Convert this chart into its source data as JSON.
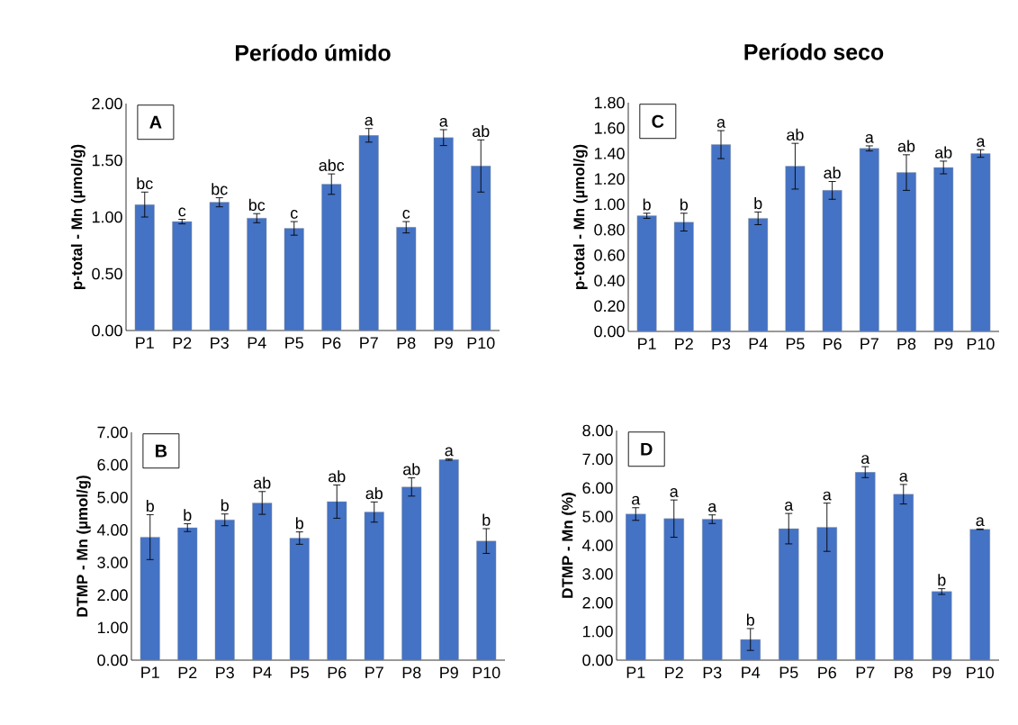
{
  "chart_data": [
    {
      "type": "bar",
      "title": "Período úmido",
      "ylabel": "p-total - Mn (µmol/g)",
      "color": "#4472c4",
      "categories": [
        "P1",
        "P2",
        "P3",
        "P4",
        "P5",
        "P6",
        "P7",
        "P8",
        "P9",
        "P10"
      ],
      "values": [
        1.11,
        0.96,
        1.13,
        0.99,
        0.9,
        1.29,
        1.72,
        0.91,
        1.7,
        1.45
      ],
      "errors": [
        0.11,
        0.02,
        0.04,
        0.04,
        0.06,
        0.09,
        0.06,
        0.05,
        0.07,
        0.23
      ],
      "ylim": [
        0,
        2
      ],
      "yticks": [
        {
          "value": 0,
          "label": "0.00"
        },
        {
          "value": 0.5,
          "label": "0.50"
        },
        {
          "value": 1,
          "label": "1.00"
        },
        {
          "value": 1.5,
          "label": "1.50"
        },
        {
          "value": 2,
          "label": "2.00"
        }
      ],
      "annotations": [
        "A",
        {
          "text": "bc",
          "x": "P1",
          "y": 1.22
        },
        {
          "text": "c",
          "x": "P2",
          "y": 0.98
        },
        {
          "text": "bc",
          "x": "P3",
          "y": 1.17
        },
        {
          "text": "bc",
          "x": "P4",
          "y": 1.03
        },
        {
          "text": "c",
          "x": "P5",
          "y": 0.96
        },
        {
          "text": "abc",
          "x": "P6",
          "y": 1.38
        },
        {
          "text": "a",
          "x": "P7",
          "y": 1.78
        },
        {
          "text": "c",
          "x": "P8",
          "y": 0.96
        },
        {
          "text": "a",
          "x": "P9",
          "y": 1.77
        },
        {
          "text": "ab",
          "x": "P10",
          "y": 1.68
        }
      ]
    },
    {
      "type": "bar",
      "ylabel": "DTMP - Mn (µmol/g)",
      "color": "#4472c4",
      "categories": [
        "P1",
        "P2",
        "P3",
        "P4",
        "P5",
        "P6",
        "P7",
        "P8",
        "P9",
        "P10"
      ],
      "values": [
        3.78,
        4.07,
        4.31,
        4.83,
        3.75,
        4.87,
        4.55,
        5.32,
        6.16,
        3.66
      ],
      "errors": [
        0.69,
        0.12,
        0.18,
        0.35,
        0.19,
        0.51,
        0.31,
        0.28,
        0.02,
        0.38
      ],
      "ylim": [
        0,
        7
      ],
      "yticks": [
        {
          "value": 0,
          "label": "0.00"
        },
        {
          "value": 1,
          "label": "1.00"
        },
        {
          "value": 2,
          "label": "2.00"
        },
        {
          "value": 3,
          "label": "3.00"
        },
        {
          "value": 4,
          "label": "4.00"
        },
        {
          "value": 5,
          "label": "5.00"
        },
        {
          "value": 6,
          "label": "6.00"
        },
        {
          "value": 7,
          "label": "7.00"
        }
      ],
      "annotations": [
        "B",
        {
          "text": "b",
          "x": "P1",
          "y": 4.47
        },
        {
          "text": "b",
          "x": "P2",
          "y": 4.19
        },
        {
          "text": "b",
          "x": "P3",
          "y": 4.49
        },
        {
          "text": "ab",
          "x": "P4",
          "y": 5.18
        },
        {
          "text": "b",
          "x": "P5",
          "y": 3.94
        },
        {
          "text": "ab",
          "x": "P6",
          "y": 5.38
        },
        {
          "text": "ab",
          "x": "P7",
          "y": 4.86
        },
        {
          "text": "ab",
          "x": "P8",
          "y": 5.6
        },
        {
          "text": "a",
          "x": "P9",
          "y": 6.18
        },
        {
          "text": "b",
          "x": "P10",
          "y": 4.04
        }
      ]
    },
    {
      "type": "bar",
      "title": "Período seco",
      "ylabel": "p-total - Mn (µmol/g)",
      "color": "#4472c4",
      "categories": [
        "P1",
        "P2",
        "P3",
        "P4",
        "P5",
        "P6",
        "P7",
        "P8",
        "P9",
        "P10"
      ],
      "values": [
        0.91,
        0.86,
        1.47,
        0.89,
        1.3,
        1.11,
        1.44,
        1.25,
        1.29,
        1.4
      ],
      "errors": [
        0.02,
        0.07,
        0.11,
        0.05,
        0.18,
        0.07,
        0.02,
        0.14,
        0.05,
        0.03
      ],
      "ylim": [
        0,
        1.8
      ],
      "yticks": [
        {
          "value": 0,
          "label": "0.00"
        },
        {
          "value": 0.2,
          "label": "0.20"
        },
        {
          "value": 0.4,
          "label": "0.40"
        },
        {
          "value": 0.6,
          "label": "0.60"
        },
        {
          "value": 0.8,
          "label": "0.80"
        },
        {
          "value": 1,
          "label": "1.00"
        },
        {
          "value": 1.2,
          "label": "1.20"
        },
        {
          "value": 1.4,
          "label": "1.40"
        },
        {
          "value": 1.6,
          "label": "1.60"
        },
        {
          "value": 1.8,
          "label": "1.80"
        }
      ],
      "annotations": [
        "C",
        {
          "text": "b",
          "x": "P1",
          "y": 0.93
        },
        {
          "text": "b",
          "x": "P2",
          "y": 0.93
        },
        {
          "text": "a",
          "x": "P3",
          "y": 1.58
        },
        {
          "text": "b",
          "x": "P4",
          "y": 0.94
        },
        {
          "text": "ab",
          "x": "P5",
          "y": 1.48
        },
        {
          "text": "ab",
          "x": "P6",
          "y": 1.18
        },
        {
          "text": "a",
          "x": "P7",
          "y": 1.46
        },
        {
          "text": "ab",
          "x": "P8",
          "y": 1.39
        },
        {
          "text": "ab",
          "x": "P9",
          "y": 1.34
        },
        {
          "text": "a",
          "x": "P10",
          "y": 1.43
        }
      ]
    },
    {
      "type": "bar",
      "ylabel": "DTMP - Mn (%)",
      "color": "#4472c4",
      "categories": [
        "P1",
        "P2",
        "P3",
        "P4",
        "P5",
        "P6",
        "P7",
        "P8",
        "P9",
        "P10"
      ],
      "values": [
        5.09,
        4.93,
        4.91,
        0.72,
        4.58,
        4.63,
        6.55,
        5.78,
        2.39,
        4.56
      ],
      "errors": [
        0.22,
        0.65,
        0.15,
        0.38,
        0.53,
        0.84,
        0.19,
        0.34,
        0.1,
        0.01
      ],
      "ylim": [
        0,
        8
      ],
      "yticks": [
        {
          "value": 0,
          "label": "0.00"
        },
        {
          "value": 1,
          "label": "1.00"
        },
        {
          "value": 2,
          "label": "2.00"
        },
        {
          "value": 3,
          "label": "3.00"
        },
        {
          "value": 4,
          "label": "4.00"
        },
        {
          "value": 5,
          "label": "5.00"
        },
        {
          "value": 6,
          "label": "6.00"
        },
        {
          "value": 7,
          "label": "7.00"
        },
        {
          "value": 8,
          "label": "8.00"
        }
      ],
      "annotations": [
        "D",
        {
          "text": "a",
          "x": "P1",
          "y": 5.31
        },
        {
          "text": "a",
          "x": "P2",
          "y": 5.58
        },
        {
          "text": "a",
          "x": "P3",
          "y": 5.06
        },
        {
          "text": "b",
          "x": "P4",
          "y": 1.1
        },
        {
          "text": "a",
          "x": "P5",
          "y": 5.11
        },
        {
          "text": "a",
          "x": "P6",
          "y": 5.47
        },
        {
          "text": "a",
          "x": "P7",
          "y": 6.74
        },
        {
          "text": "a",
          "x": "P8",
          "y": 6.12
        },
        {
          "text": "b",
          "x": "P9",
          "y": 2.49
        },
        {
          "text": "a",
          "x": "P10",
          "y": 4.57
        }
      ]
    }
  ]
}
